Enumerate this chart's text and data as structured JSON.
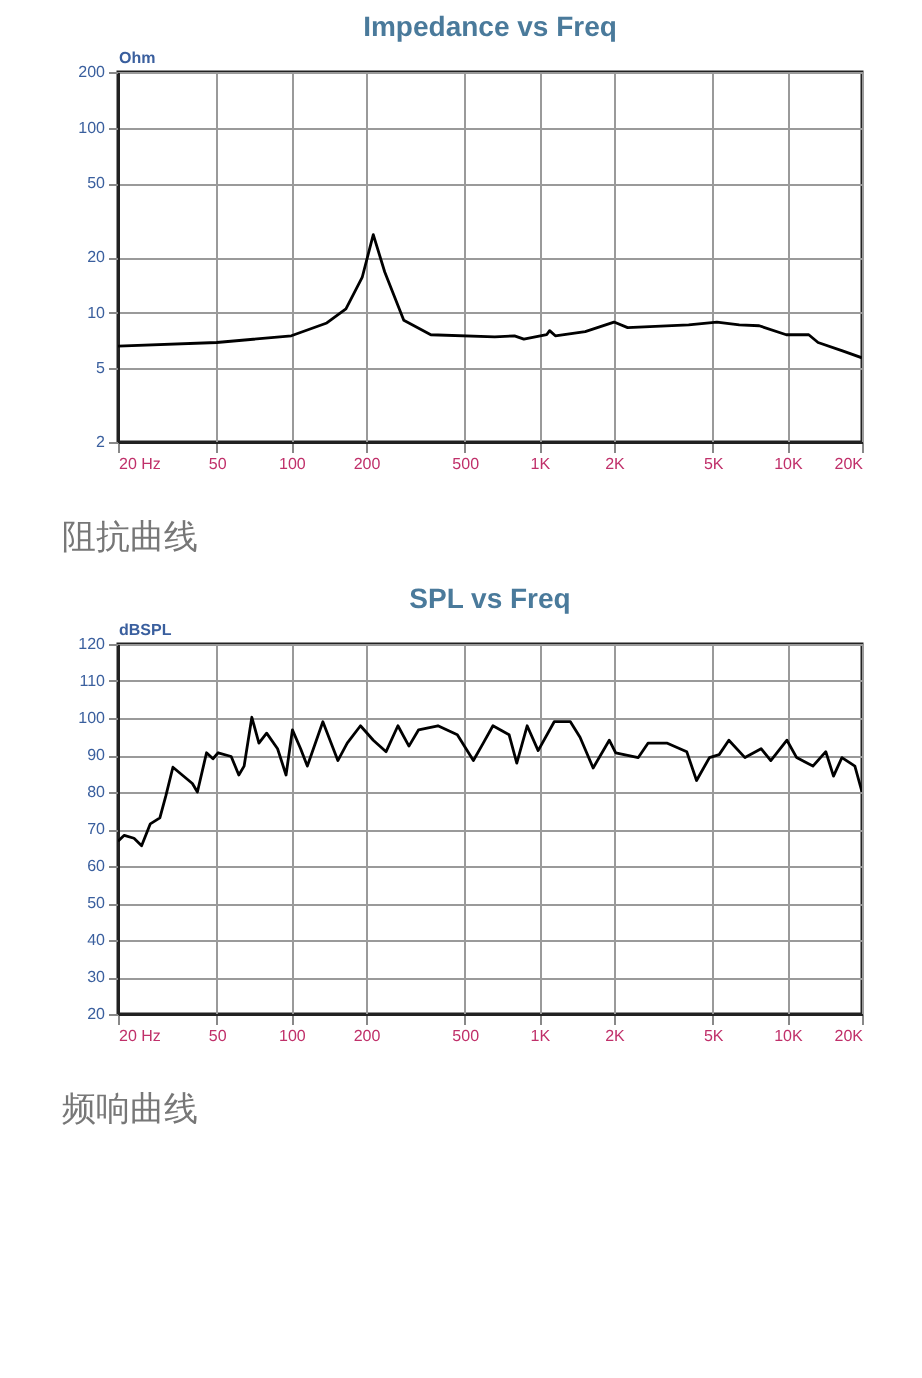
{
  "chart_data": [
    {
      "type": "line",
      "title": "Impedance vs Freq",
      "ylabel": "Ohm",
      "log": "xy",
      "grid": true,
      "line_style": "solid",
      "marker": "none",
      "annotations": [
        "阻抗曲线"
      ],
      "xlim": [
        20,
        20000
      ],
      "xticks": [
        {
          "value": 20,
          "label": "20 Hz"
        },
        50,
        100,
        200,
        500,
        {
          "value": 1000,
          "label": "1K"
        },
        {
          "value": 2000,
          "label": "2K"
        },
        {
          "value": 5000,
          "label": "5K"
        },
        {
          "value": 10000,
          "label": "10K"
        },
        {
          "value": 20000,
          "label": "20K"
        }
      ],
      "ylim": [
        2,
        200
      ],
      "yticks": [
        2,
        5,
        10,
        20,
        50,
        100,
        200
      ],
      "series": [
        {
          "color": "#000000",
          "x": [
            20,
            50,
            100,
            139,
            166,
            193,
            214,
            238,
            284,
            365,
            661,
            794,
            866,
            1070,
            1100,
            1160,
            1531,
            2000,
            2270,
            4000,
            5200,
            6400,
            7700,
            9900,
            12200,
            13300,
            16800,
            20000
          ],
          "values": [
            6.6,
            6.9,
            7.5,
            8.8,
            10.5,
            15.5,
            26.4,
            16.6,
            9.1,
            7.6,
            7.4,
            7.5,
            7.2,
            7.6,
            8.0,
            7.5,
            7.9,
            8.9,
            8.3,
            8.6,
            8.9,
            8.6,
            8.5,
            7.6,
            7.6,
            6.9,
            6.2,
            5.7
          ]
        }
      ]
    },
    {
      "type": "line",
      "title": "SPL vs Freq",
      "ylabel": "dBSPL",
      "log": "x",
      "grid": true,
      "line_style": "solid",
      "marker": "none",
      "annotations": [
        "频响曲线"
      ],
      "xlim": [
        20,
        20000
      ],
      "xticks": [
        {
          "value": 20,
          "label": "20 Hz"
        },
        50,
        100,
        200,
        500,
        {
          "value": 1000,
          "label": "1K"
        },
        {
          "value": 2000,
          "label": "2K"
        },
        {
          "value": 5000,
          "label": "5K"
        },
        {
          "value": 10000,
          "label": "10K"
        },
        {
          "value": 20000,
          "label": "20K"
        }
      ],
      "ylim": [
        20,
        120
      ],
      "yticks": [
        20,
        30,
        40,
        50,
        60,
        70,
        80,
        90,
        100,
        110,
        120
      ],
      "series": [
        {
          "color": "#000000",
          "x": [
            20,
            21.2,
            23.2,
            24.9,
            27.0,
            29.5,
            31.2,
            33.3,
            39.9,
            41.8,
            45.5,
            48.3,
            50.7,
            57.2,
            61.4,
            64.5,
            69.3,
            74.0,
            79.5,
            88.0,
            95.2,
            101,
            109,
            116,
            134,
            154,
            168,
            190,
            214,
            241,
            269,
            298,
            326,
            390,
            467,
            542,
            594,
            650,
            755,
            811,
            893,
            989,
            1148,
            1334,
            1459,
            1648,
            1914,
            2032,
            2506,
            2742,
            3282,
            3929,
            4304,
            4852,
            5310,
            5809,
            6747,
            7837,
            8576,
            9962,
            10900,
            12680,
            14290,
            15350,
            16600,
            18720,
            20000
          ],
          "values": [
            66.7,
            68.3,
            67.5,
            65.5,
            71.4,
            73,
            79,
            86.7,
            82.3,
            80,
            90.6,
            89,
            90.6,
            89.6,
            84.6,
            87,
            100.2,
            93.2,
            95.9,
            91.7,
            84.6,
            96.8,
            91.7,
            87,
            99,
            88.5,
            93.2,
            97.9,
            94,
            90.9,
            97.9,
            92.4,
            96.8,
            97.9,
            95.5,
            88.5,
            93.2,
            97.9,
            95.5,
            87.8,
            97.9,
            91.2,
            99,
            99,
            94.8,
            86.5,
            94,
            90.6,
            89.3,
            93.2,
            93.2,
            90.9,
            83.1,
            89.3,
            90.1,
            94,
            89.3,
            91.7,
            88.5,
            94,
            89.3,
            87,
            90.9,
            84.3,
            89.3,
            87,
            80
          ]
        }
      ]
    }
  ]
}
